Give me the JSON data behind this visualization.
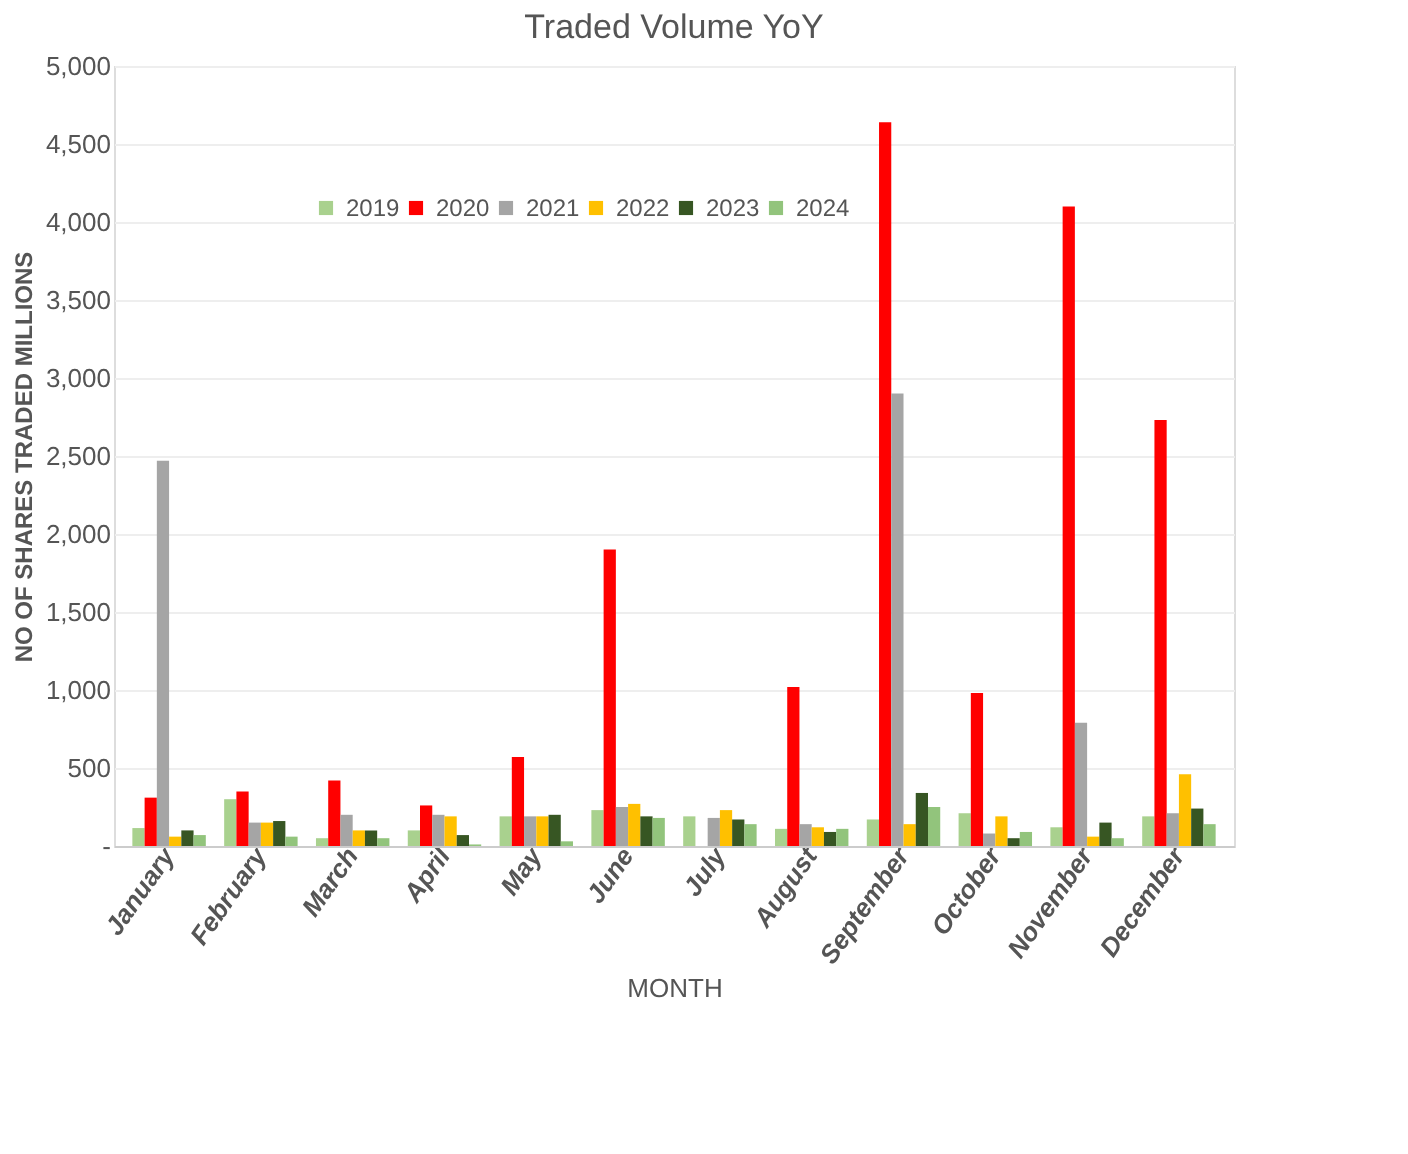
{
  "chart_data": {
    "type": "bar",
    "title": "Traded Volume YoY",
    "xlabel": "MONTH",
    "ylabel": "NO OF SHARES TRADED    MILLIONS",
    "categories": [
      "January",
      "February",
      "March",
      "April",
      "May",
      "June",
      "July",
      "August",
      "September",
      "October",
      "November",
      "December"
    ],
    "series": [
      {
        "name": "2019",
        "color": "#a9d18e",
        "values": [
          115,
          300,
          50,
          100,
          190,
          230,
          190,
          110,
          170,
          210,
          120,
          190
        ]
      },
      {
        "name": "2020",
        "color": "#ff0000",
        "values": [
          310,
          350,
          420,
          260,
          570,
          1900,
          0,
          1020,
          4640,
          980,
          4100,
          2730
        ]
      },
      {
        "name": "2021",
        "color": "#a5a5a5",
        "values": [
          2470,
          150,
          200,
          200,
          190,
          250,
          180,
          140,
          2900,
          80,
          790,
          210
        ]
      },
      {
        "name": "2022",
        "color": "#ffc000",
        "values": [
          60,
          150,
          100,
          190,
          190,
          270,
          230,
          120,
          140,
          190,
          60,
          460
        ]
      },
      {
        "name": "2023",
        "color": "#375623",
        "values": [
          100,
          160,
          100,
          70,
          200,
          190,
          170,
          90,
          340,
          50,
          150,
          240
        ]
      },
      {
        "name": "2024",
        "color": "#92c47c",
        "values": [
          70,
          60,
          50,
          10,
          30,
          180,
          140,
          110,
          250,
          90,
          50,
          140
        ]
      }
    ],
    "ylim": [
      0,
      5000
    ],
    "yticks": [
      {
        "value": 0,
        "label": "-"
      },
      500,
      {
        "value": 1000,
        "label": "1,000"
      },
      {
        "value": 1500,
        "label": "1,500"
      },
      {
        "value": 2000,
        "label": "2,000"
      },
      {
        "value": 2500,
        "label": "2,500"
      },
      {
        "value": 3000,
        "label": "3,000"
      },
      {
        "value": 3500,
        "label": "3,500"
      },
      {
        "value": 4000,
        "label": "4,000"
      },
      {
        "value": 4500,
        "label": "4,500"
      },
      {
        "value": 5000,
        "label": "5,000"
      }
    ],
    "grid": "y",
    "legend": "top"
  }
}
